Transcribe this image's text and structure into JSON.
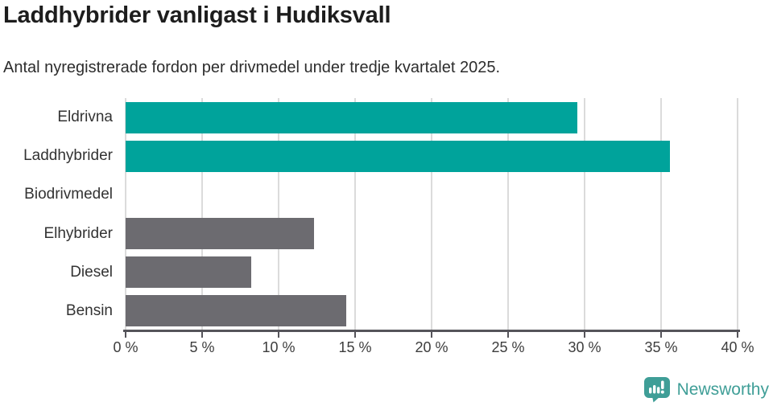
{
  "header": {
    "title": "Laddhybrider vanligast i Hudiksvall",
    "subtitle": "Antal nyregistrerade fordon per drivmedel under tredje kvartalet 2025."
  },
  "chart_data": {
    "type": "bar",
    "orientation": "horizontal",
    "title": "Laddhybrider vanligast i Hudiksvall",
    "subtitle": "Antal nyregistrerade fordon per drivmedel under tredje kvartalet 2025.",
    "categories": [
      "Eldrivna",
      "Laddhybrider",
      "Biodrivmedel",
      "Elhybrider",
      "Diesel",
      "Bensin"
    ],
    "values": [
      29.5,
      35.6,
      0,
      12.3,
      8.2,
      14.4
    ],
    "unit": "%",
    "xlim": [
      0,
      40
    ],
    "x_ticks": [
      0,
      5,
      10,
      15,
      20,
      25,
      30,
      35,
      40
    ],
    "x_tick_labels": [
      "0 %",
      "5 %",
      "10 %",
      "15 %",
      "20 %",
      "25 %",
      "30 %",
      "35 %",
      "40 %"
    ],
    "grid": true,
    "legend": "none",
    "bar_colors": [
      "#00a39b",
      "#00a39b",
      "#00a39b",
      "#6c6b70",
      "#6c6b70",
      "#6c6b70"
    ],
    "colors": {
      "accent_teal": "#00a39b",
      "neutral_gray": "#6c6b70",
      "gridline": "#dbdbdb",
      "axis": "#55545a"
    }
  },
  "footer": {
    "brand": "Newsworthy",
    "brand_color": "#3f9e97",
    "logo_icon": "newsworthy-speech-bubble-bar-chart-icon"
  }
}
